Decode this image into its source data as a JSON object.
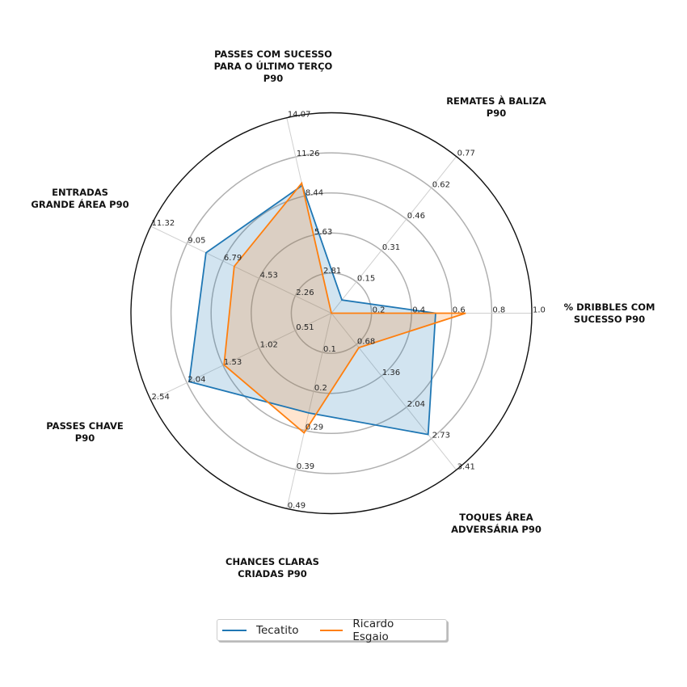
{
  "chart_data": {
    "type": "radar",
    "axes": [
      {
        "label": [
          "% DRIBBLES COM",
          "SUCESSO P90"
        ],
        "max": 1.0,
        "ticks": [
          "0.2",
          "0.4",
          "0.6",
          "0.8",
          "1.0"
        ]
      },
      {
        "label": [
          "REMATES À BALIZA",
          "P90"
        ],
        "max": 0.77,
        "ticks": [
          "0.15",
          "0.31",
          "0.46",
          "0.62",
          "0.77"
        ]
      },
      {
        "label": [
          "PASSES COM SUCESSO",
          "PARA O ÚLTIMO TERÇO",
          "P90"
        ],
        "max": 14.07,
        "ticks": [
          "2.81",
          "5.63",
          "8.44",
          "11.26",
          "14.07"
        ]
      },
      {
        "label": [
          "ENTRADAS",
          "GRANDE ÁREA P90"
        ],
        "max": 11.32,
        "ticks": [
          "2.26",
          "4.53",
          "6.79",
          "9.05",
          "11.32"
        ]
      },
      {
        "label": [
          "PASSES CHAVE",
          "P90"
        ],
        "max": 2.54,
        "ticks": [
          "0.51",
          "1.02",
          "1.53",
          "2.04",
          "2.54"
        ]
      },
      {
        "label": [
          "CHANCES CLARAS",
          "CRIADAS P90"
        ],
        "max": 0.49,
        "ticks": [
          "0.1",
          "0.2",
          "0.29",
          "0.39",
          "0.49"
        ]
      },
      {
        "label": [
          "TOQUES ÁREA",
          "ADVERSÁRIA P90"
        ],
        "max": 3.41,
        "ticks": [
          "0.68",
          "1.36",
          "2.04",
          "2.73",
          "3.41"
        ]
      }
    ],
    "series": [
      {
        "name": "Tecatito",
        "color": "#1f77b4",
        "values": [
          0.52,
          0.065,
          9.2,
          7.86,
          2.0,
          0.25,
          2.64
        ]
      },
      {
        "name": "Ricardo Esgaio",
        "color": "#ff7f0e",
        "values": [
          0.67,
          0.0,
          9.36,
          6.09,
          1.51,
          0.3,
          0.75
        ]
      }
    ],
    "grid": true,
    "legend": "bottom"
  }
}
